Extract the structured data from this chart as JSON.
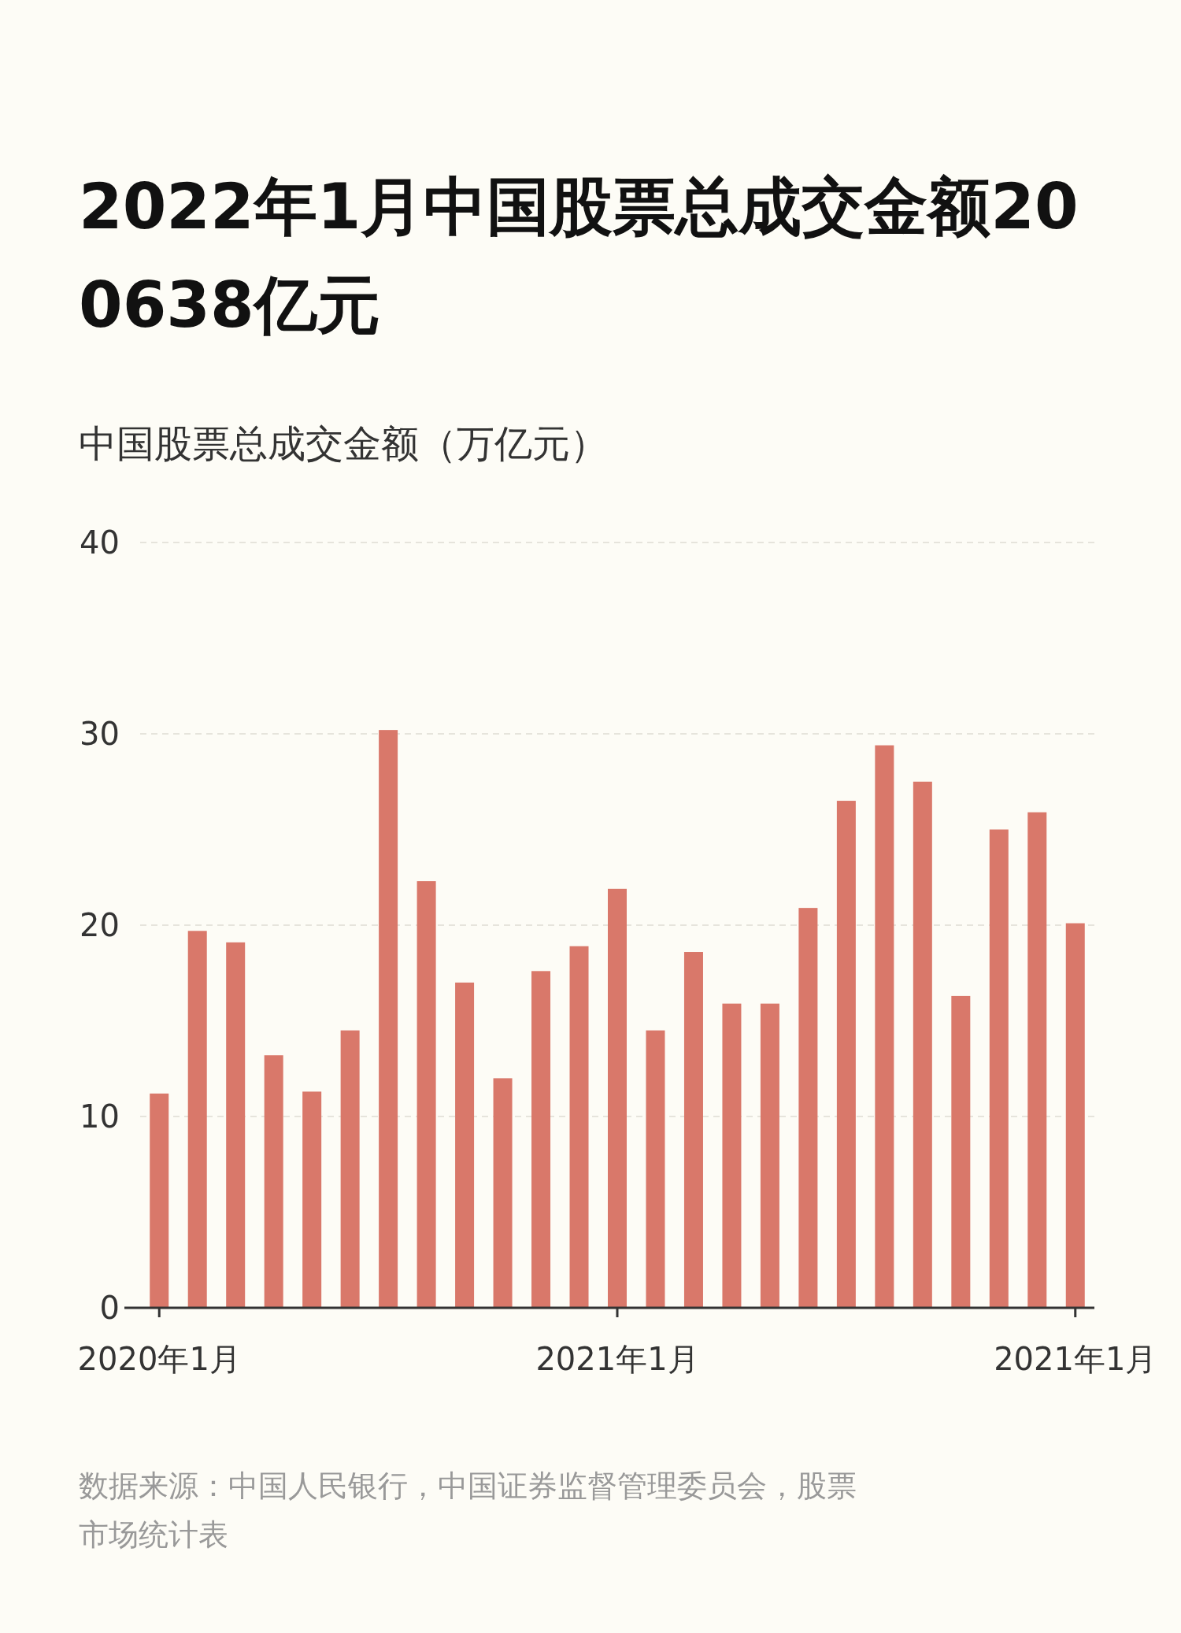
{
  "chart_data": {
    "type": "bar",
    "title": "2022年1月中国股票总成交金额200638亿元",
    "ylabel": "中国股票总成交金额（万亿元）",
    "categories": [
      "2020年1月",
      null,
      null,
      null,
      null,
      null,
      null,
      null,
      null,
      null,
      null,
      null,
      "2021年1月",
      null,
      null,
      null,
      null,
      null,
      null,
      null,
      null,
      null,
      null,
      null,
      "2021年1月"
    ],
    "values": [
      11.2,
      19.7,
      19.1,
      13.2,
      11.3,
      14.5,
      30.2,
      22.3,
      17.0,
      12.0,
      17.6,
      18.9,
      21.9,
      14.5,
      18.6,
      15.9,
      15.9,
      20.9,
      26.5,
      29.4,
      27.5,
      16.3,
      25.0,
      25.9,
      20.1
    ],
    "color": "#d9786a",
    "ylim": [
      0,
      40
    ],
    "yticks": [
      0,
      10,
      20,
      30,
      40
    ],
    "grid": "y",
    "annotations": [
      "数据来源：中国人民银行，中国证券监督管理委员会，股票市场统计表"
    ]
  }
}
